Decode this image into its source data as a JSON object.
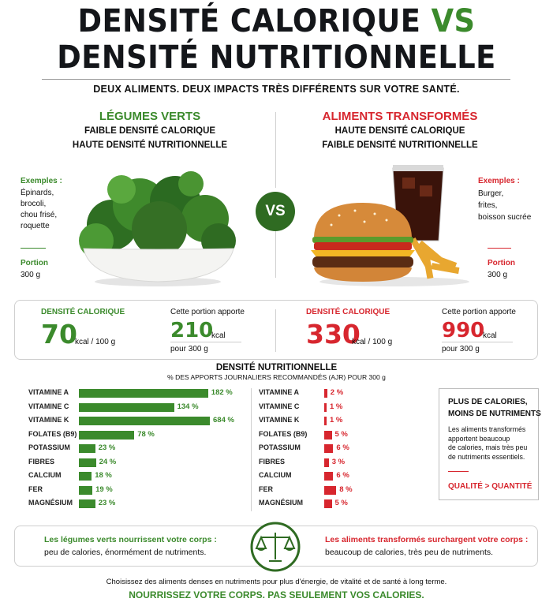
{
  "title": {
    "line1": "DENSITÉ CALORIQUE ",
    "vs": "VS",
    "line2": "DENSITÉ NUTRITIONNELLE"
  },
  "subtitle": "DEUX ALIMENTS. DEUX IMPACTS TRÈS DIFFÉRENTS SUR VOTRE SANTÉ.",
  "left": {
    "heading": "LÉGUMES VERTS",
    "sub1": "FAIBLE DENSITÉ CALORIQUE",
    "sub2": "HAUTE DENSITÉ NUTRITIONNELLE",
    "examples_label": "Exemples :",
    "examples": [
      "Épinards,",
      "brocoli,",
      "chou frisé,",
      "roquette"
    ],
    "portion_label": "Portion",
    "portion_value": "300 g",
    "density_label": "DENSITÉ CALORIQUE",
    "density_value": "70",
    "density_unit": "kcal / 100 g",
    "portion_text": "Cette portion apporte",
    "portion_kcal": "210",
    "kcal": "kcal",
    "pour": "pour 300 g"
  },
  "right": {
    "heading": "ALIMENTS TRANSFORMÉS",
    "sub1": "HAUTE DENSITÉ CALORIQUE",
    "sub2": "FAIBLE DENSITÉ NUTRITIONNELLE",
    "examples_label": "Exemples :",
    "examples": [
      "Burger,",
      "frites,",
      "boisson sucrée"
    ],
    "portion_label": "Portion",
    "portion_value": "300 g",
    "density_label": "DENSITÉ CALORIQUE",
    "density_value": "330",
    "density_unit": "kcal / 100 g",
    "portion_text": "Cette portion apporte",
    "portion_kcal": "990",
    "kcal": "kcal",
    "pour": "pour 300 g"
  },
  "vs_badge": "VS",
  "nutri": {
    "title": "DENSITÉ NUTRITIONNELLE",
    "subtitle": "% DES APPORTS JOURNALIERS RECOMMANDÉS (AJR) POUR 300 g"
  },
  "chart_data": [
    {
      "type": "bar",
      "categories": [
        "VITAMINE A",
        "VITAMINE C",
        "VITAMINE K",
        "FOLATES (B9)",
        "POTASSIUM",
        "FIBRES",
        "CALCIUM",
        "FER",
        "MAGNÉSIUM"
      ],
      "values": [
        182,
        134,
        684,
        78,
        23,
        24,
        18,
        19,
        23
      ],
      "labels": [
        "182 %",
        "134 %",
        "684 %",
        "78 %",
        "23 %",
        "24 %",
        "18 %",
        "19 %",
        "23 %"
      ]
    },
    {
      "type": "bar",
      "categories": [
        "VITAMINE A",
        "VITAMINE C",
        "VITAMINE K",
        "FOLATES (B9)",
        "POTASSIUM",
        "FIBRES",
        "CALCIUM",
        "FER",
        "MAGNÉSIUM"
      ],
      "values": [
        2,
        1,
        1,
        5,
        6,
        3,
        6,
        8,
        5
      ],
      "labels": [
        "2 %",
        "1 %",
        "1 %",
        "5 %",
        "6 %",
        "3 %",
        "6 %",
        "8 %",
        "5 %"
      ]
    }
  ],
  "sidebox": {
    "title1": "PLUS DE CALORIES,",
    "title2": "MOINS DE NUTRIMENTS",
    "body": [
      "Les aliments transformés",
      "apportent beaucoup",
      "de calories, mais très peu",
      "de nutriments essentiels."
    ],
    "punch": "QUALITÉ > QUANTITÉ"
  },
  "bottom": {
    "left_title": "Les légumes verts nourrissent votre corps :",
    "left_body": "peu de calories, énormément de nutriments.",
    "right_title": "Les aliments transformés surchargent votre corps :",
    "right_body": "beaucoup de calories, très peu de nutriments."
  },
  "footer": {
    "line1": "Choisissez des aliments denses en nutriments pour plus d'énergie, de vitalité et de santé à long terme.",
    "line2": "NOURRISSEZ VOTRE CORPS. PAS SEULEMENT VOS CALORIES."
  },
  "colors": {
    "green": "#3b8a2c",
    "red": "#d7262e"
  },
  "icons": [
    "veggie-bowl-image",
    "burger-meal-image",
    "balance-scale-icon"
  ]
}
